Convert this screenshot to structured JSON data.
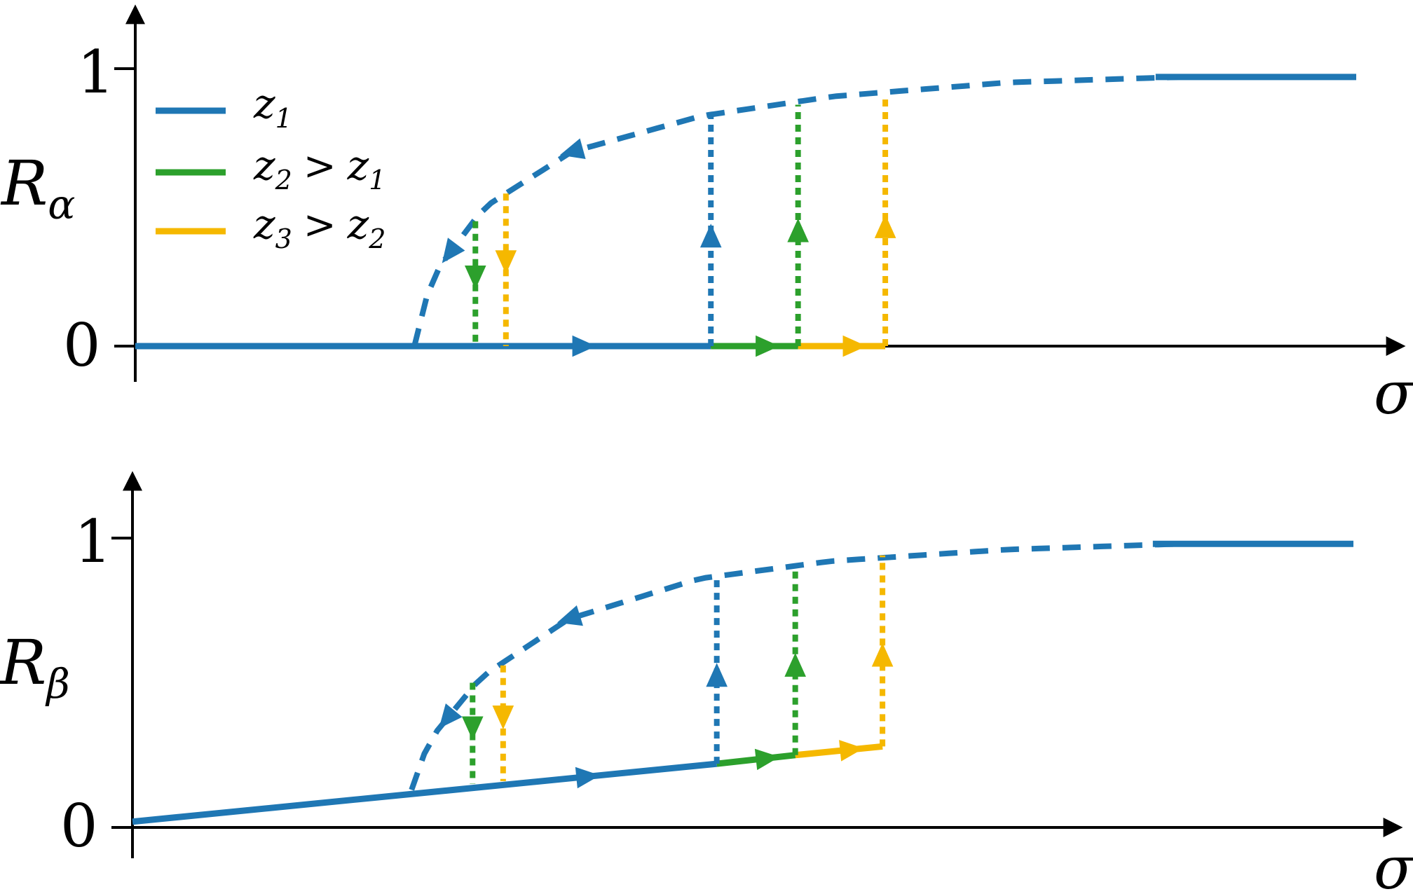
{
  "colors": {
    "z1": "#1f77b4",
    "z2": "#2ca02c",
    "z3": "#f5b800",
    "axis": "#000000"
  },
  "legend": [
    {
      "key": "z1",
      "base": "z",
      "sub": "1",
      "op": "",
      "base2": "",
      "sub2": ""
    },
    {
      "key": "z2",
      "base": "z",
      "sub": "2",
      "op": ">",
      "base2": "z",
      "sub2": "1"
    },
    {
      "key": "z3",
      "base": "z",
      "sub": "3",
      "op": ">",
      "base2": "z",
      "sub2": "2"
    }
  ],
  "chart_data": [
    {
      "type": "line",
      "ylabel": {
        "base": "R",
        "sub": "α"
      },
      "xlabel": "σ",
      "yticks": [
        "1",
        "0"
      ],
      "xlim": [
        0,
        1.4
      ],
      "ylim": [
        0,
        1
      ],
      "unstable_branch": {
        "style": "dashed",
        "x": [
          0.32,
          0.34,
          0.4,
          0.5,
          0.65,
          0.8,
          1.0,
          1.2
        ],
        "y": [
          0.0,
          0.25,
          0.5,
          0.7,
          0.83,
          0.9,
          0.95,
          0.97
        ]
      },
      "upper_branch": {
        "style": "solid",
        "x": [
          1.17,
          1.4
        ],
        "y": [
          0.97,
          0.97
        ]
      },
      "lower_branch": [
        {
          "key": "z1",
          "x": [
            0,
            0.66
          ],
          "y": [
            0,
            0
          ]
        },
        {
          "key": "z2",
          "x": [
            0.66,
            0.76
          ],
          "y": [
            0,
            0
          ]
        },
        {
          "key": "z3",
          "x": [
            0.76,
            0.86
          ],
          "y": [
            0,
            0
          ]
        }
      ],
      "jumps_up": [
        {
          "key": "z1",
          "x": 0.66,
          "y_from": 0,
          "y_to": 0.83
        },
        {
          "key": "z2",
          "x": 0.76,
          "y_from": 0,
          "y_to": 0.87
        },
        {
          "key": "z3",
          "x": 0.86,
          "y_from": 0,
          "y_to": 0.9
        }
      ],
      "jumps_down": [
        {
          "key": "z2",
          "x": 0.39,
          "y_from": 0.45,
          "y_to": 0
        },
        {
          "key": "z3",
          "x": 0.425,
          "y_from": 0.55,
          "y_to": 0
        }
      ]
    },
    {
      "type": "line",
      "ylabel": {
        "base": "R",
        "sub": "β"
      },
      "xlabel": "σ",
      "yticks": [
        "1",
        "0"
      ],
      "xlim": [
        0,
        1.4
      ],
      "ylim": [
        0,
        1
      ],
      "unstable_branch": {
        "style": "dashed",
        "x": [
          0.32,
          0.34,
          0.4,
          0.5,
          0.65,
          0.8,
          1.0,
          1.2
        ],
        "y": [
          0.13,
          0.3,
          0.52,
          0.72,
          0.86,
          0.92,
          0.96,
          0.98
        ]
      },
      "upper_branch": {
        "style": "solid",
        "x": [
          1.17,
          1.4
        ],
        "y": [
          0.98,
          0.98
        ]
      },
      "lower_branch": [
        {
          "key": "z1",
          "x": [
            0,
            0.67
          ],
          "y": [
            0.02,
            0.22
          ]
        },
        {
          "key": "z2",
          "x": [
            0.67,
            0.76
          ],
          "y": [
            0.22,
            0.25
          ]
        },
        {
          "key": "z3",
          "x": [
            0.76,
            0.86
          ],
          "y": [
            0.25,
            0.28
          ]
        }
      ],
      "jumps_up": [
        {
          "key": "z1",
          "x": 0.67,
          "y_from": 0.22,
          "y_to": 0.86
        },
        {
          "key": "z2",
          "x": 0.76,
          "y_from": 0.25,
          "y_to": 0.9
        },
        {
          "key": "z3",
          "x": 0.86,
          "y_from": 0.28,
          "y_to": 0.94
        }
      ],
      "jumps_down": [
        {
          "key": "z2",
          "x": 0.39,
          "y_from": 0.5,
          "y_to": 0.15
        },
        {
          "key": "z3",
          "x": 0.425,
          "y_from": 0.56,
          "y_to": 0.16
        }
      ]
    }
  ]
}
